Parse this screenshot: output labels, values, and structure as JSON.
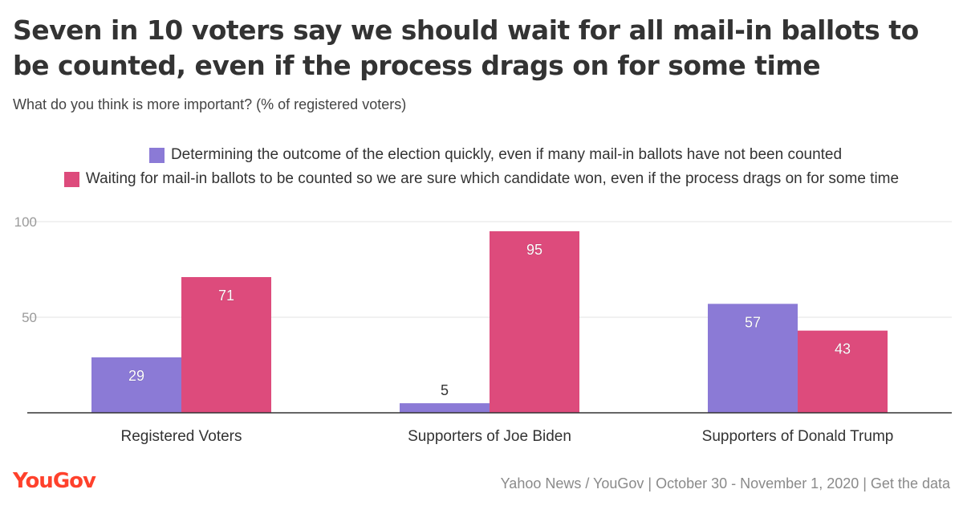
{
  "title": "Seven in 10 voters say we should wait for all mail-in ballots to be counted, even if the process drags on for some time",
  "subtitle": "What do you think is more important? (% of registered voters)",
  "colors": {
    "series1": "#8b7ad6",
    "series2": "#dd4b7c",
    "axis": "#333333",
    "grid": "#e3e3e3",
    "brand": "#ff412c"
  },
  "footer": {
    "logo": "YouGov",
    "source": "Yahoo News / YouGov | October 30 - November 1, 2020 | Get the data"
  },
  "chart_data": {
    "type": "bar",
    "categories": [
      "Registered Voters",
      "Supporters of Joe Biden",
      "Supporters of Donald Trump"
    ],
    "series": [
      {
        "name": "Determining the outcome of the election quickly, even if many mail-in ballots have not been counted",
        "values": [
          29,
          5,
          57
        ]
      },
      {
        "name": "Waiting for mail-in ballots to be counted so we are sure which candidate won, even if the process drags on for some time",
        "values": [
          71,
          95,
          43
        ]
      }
    ],
    "yticks": [
      50,
      100
    ],
    "ylim": [
      0,
      100
    ],
    "grid": true,
    "legend": "top"
  }
}
